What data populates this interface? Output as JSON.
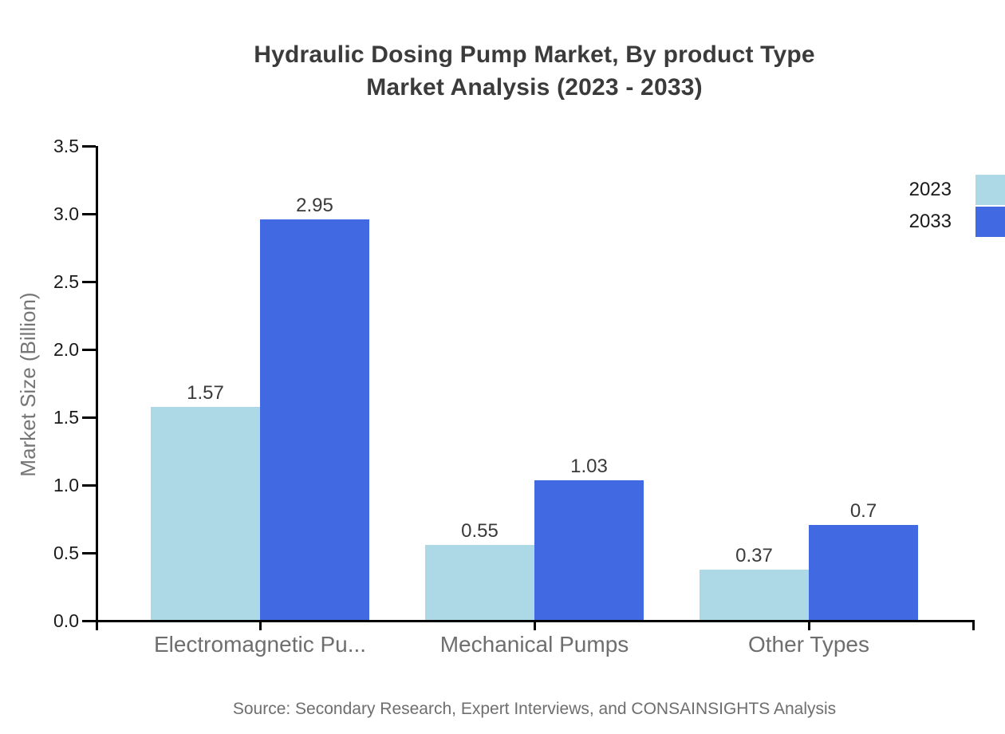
{
  "title": {
    "line1": "Hydraulic Dosing Pump Market, By product Type",
    "line2": "Market Analysis (2023 - 2033)"
  },
  "source": {
    "text": "Source: Secondary Research, Expert Interviews, and CONSAINSIGHTS Analysis"
  },
  "legend": {
    "items": [
      {
        "label": "2023",
        "color": "#ADD8E6"
      },
      {
        "label": "2033",
        "color": "#4169E1"
      }
    ],
    "position": "top-right-edge"
  },
  "chart_data": {
    "type": "bar",
    "title": "Hydraulic Dosing Pump Market, By product Type Market Analysis (2023 - 2033)",
    "categories": [
      "Electromagnetic Pu...",
      "Mechanical Pumps",
      "Other Types"
    ],
    "series": [
      {
        "name": "2023",
        "color": "#ADD8E6",
        "values": [
          1.57,
          0.55,
          0.37
        ]
      },
      {
        "name": "2033",
        "color": "#4169E1",
        "values": [
          2.95,
          1.03,
          0.7
        ]
      }
    ],
    "xlabel": "",
    "ylabel": "Market Size (Billion)",
    "ylim": [
      0,
      3.5
    ],
    "ytick_step": 0.5,
    "ytick_labels": [
      "0.0",
      "0.5",
      "1.0",
      "1.5",
      "2.0",
      "2.5",
      "3.0",
      "3.5"
    ],
    "grid": false,
    "value_labels": true,
    "legend_position": "top-right"
  },
  "colors": {
    "background": "#ffffff",
    "series_2023": "#ADD8E6",
    "series_2033": "#4169E1",
    "axis": "#000000",
    "title_text": "#3b3b3b",
    "tick_label": "#1a1a1a",
    "value_label": "#3a3a3a",
    "category_label": "#6e6e6e",
    "axis_title": "#757575",
    "source_text": "#6e6e6e"
  }
}
